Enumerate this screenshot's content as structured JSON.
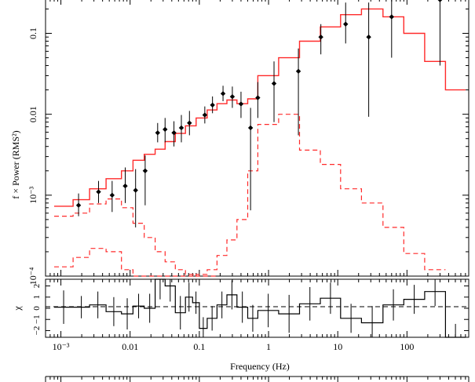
{
  "chart_data": [
    {
      "type": "line",
      "panel": "spectrum",
      "xscale": "log",
      "yscale": "log",
      "ylabel": "f × Power (RMS²)",
      "yticks": [
        {
          "value": 0.001,
          "label": "10⁻³"
        },
        {
          "value": 0.01,
          "label": "0.01"
        },
        {
          "value": 0.1,
          "label": "0.1"
        },
        {
          "value": 0.0001,
          "label": "10⁻⁴"
        }
      ],
      "colors": {
        "data": "#000000",
        "model": "#ff2a2a"
      },
      "data_points": [
        {
          "f": 0.0018,
          "y": 0.00075,
          "ylo": 0.00055,
          "yhi": 0.00105
        },
        {
          "f": 0.0035,
          "y": 0.0011,
          "ylo": 0.0008,
          "yhi": 0.0015
        },
        {
          "f": 0.0055,
          "y": 0.001,
          "ylo": 0.00062,
          "yhi": 0.0015
        },
        {
          "f": 0.0085,
          "y": 0.0013,
          "ylo": 0.0008,
          "yhi": 0.0022
        },
        {
          "f": 0.012,
          "y": 0.00115,
          "ylo": 0.0004,
          "yhi": 0.0021
        },
        {
          "f": 0.0165,
          "y": 0.002,
          "ylo": 0.00075,
          "yhi": 0.0031
        },
        {
          "f": 0.025,
          "y": 0.0059,
          "ylo": 0.0045,
          "yhi": 0.0078
        },
        {
          "f": 0.032,
          "y": 0.0065,
          "ylo": 0.0045,
          "yhi": 0.009
        },
        {
          "f": 0.043,
          "y": 0.0059,
          "ylo": 0.004,
          "yhi": 0.0082
        },
        {
          "f": 0.055,
          "y": 0.0068,
          "ylo": 0.0045,
          "yhi": 0.0098
        },
        {
          "f": 0.072,
          "y": 0.0078,
          "ylo": 0.0055,
          "yhi": 0.011
        },
        {
          "f": 0.12,
          "y": 0.0098,
          "ylo": 0.0077,
          "yhi": 0.0125
        },
        {
          "f": 0.155,
          "y": 0.013,
          "ylo": 0.0103,
          "yhi": 0.0166
        },
        {
          "f": 0.22,
          "y": 0.018,
          "ylo": 0.0145,
          "yhi": 0.0225
        },
        {
          "f": 0.3,
          "y": 0.0165,
          "ylo": 0.012,
          "yhi": 0.022
        },
        {
          "f": 0.4,
          "y": 0.0134,
          "ylo": 0.009,
          "yhi": 0.019
        },
        {
          "f": 0.55,
          "y": 0.0068,
          "ylo": 0.00065,
          "yhi": 0.012
        },
        {
          "f": 0.7,
          "y": 0.016,
          "ylo": 0.009,
          "yhi": 0.025
        },
        {
          "f": 1.2,
          "y": 0.024,
          "ylo": 0.008,
          "yhi": 0.045
        },
        {
          "f": 2.7,
          "y": 0.034,
          "ylo": 0.0055,
          "yhi": 0.065
        },
        {
          "f": 5.7,
          "y": 0.09,
          "ylo": 0.055,
          "yhi": 0.13
        },
        {
          "f": 13.0,
          "y": 0.13,
          "ylo": 0.075,
          "yhi": 0.24
        },
        {
          "f": 28.0,
          "y": 0.09,
          "ylo": 0.0093,
          "yhi": 0.24
        },
        {
          "f": 60.0,
          "y": 0.16,
          "ylo": 0.05,
          "yhi": 0.26
        },
        {
          "f": 300.0,
          "y": 0.26,
          "ylo": 0.04,
          "yhi": 0.26
        }
      ],
      "model_total": {
        "edges": [
          0.0008,
          0.0015,
          0.0026,
          0.0045,
          0.0075,
          0.011,
          0.016,
          0.023,
          0.032,
          0.045,
          0.063,
          0.09,
          0.13,
          0.18,
          0.25,
          0.35,
          0.5,
          0.7,
          1.4,
          2.8,
          5.6,
          11,
          22,
          45,
          90,
          180,
          360,
          700
        ],
        "values": [
          0.00073,
          0.00088,
          0.0012,
          0.0016,
          0.002,
          0.0027,
          0.0032,
          0.0037,
          0.0046,
          0.0058,
          0.0072,
          0.009,
          0.0113,
          0.0135,
          0.015,
          0.0135,
          0.0155,
          0.03,
          0.05,
          0.08,
          0.12,
          0.17,
          0.2,
          0.16,
          0.1,
          0.045,
          0.02
        ]
      },
      "model_component_low": {
        "edges": [
          0.0008,
          0.0015,
          0.0026,
          0.0045,
          0.0075,
          0.011,
          0.016,
          0.023,
          0.032,
          0.045,
          0.063,
          0.09,
          0.13,
          0.18
        ],
        "values": [
          0.00055,
          0.0006,
          0.00078,
          0.0009,
          0.0007,
          0.00045,
          0.0003,
          0.0002,
          0.00015,
          0.00012,
          0.000105,
          9.5e-05,
          9e-05
        ]
      },
      "model_component_high": {
        "edges": [
          0.0008,
          0.0015,
          0.0026,
          0.0045,
          0.0075,
          0.011,
          0.016,
          0.023,
          0.032,
          0.045,
          0.063,
          0.09,
          0.13,
          0.18,
          0.25,
          0.35,
          0.5,
          0.7,
          1.4,
          2.8,
          5.6,
          11,
          22,
          45,
          90,
          180,
          360
        ],
        "values": [
          0.00013,
          0.00017,
          0.00022,
          0.0002,
          0.00012,
          0.0001,
          9e-05,
          9e-05,
          9e-05,
          9e-05,
          9.5e-05,
          0.000105,
          0.00012,
          0.00018,
          0.00028,
          0.0005,
          0.002,
          0.0075,
          0.01,
          0.0036,
          0.0024,
          0.0012,
          0.0008,
          0.0004,
          0.00019,
          0.00012
        ]
      }
    },
    {
      "type": "line",
      "panel": "residuals",
      "xscale": "log",
      "ylabel": "χ",
      "yticks": [
        {
          "value": -2,
          "label": "−2"
        },
        {
          "value": -1,
          "label": "−1"
        },
        {
          "value": 0,
          "label": "0"
        },
        {
          "value": 1,
          "label": "1"
        },
        {
          "value": 2,
          "label": "2"
        }
      ],
      "ylim": [
        -2.6,
        2.6
      ],
      "xticks": [
        {
          "value": 0.001,
          "label": "10⁻³"
        },
        {
          "value": 0.01,
          "label": "0.01"
        },
        {
          "value": 0.1,
          "label": "0.1"
        },
        {
          "value": 1,
          "label": "1"
        },
        {
          "value": 10,
          "label": "10"
        },
        {
          "value": 100,
          "label": "100"
        }
      ],
      "xlabel": "Frequency (Hz)",
      "zero_line": "dashed",
      "edges": [
        0.0008,
        0.0015,
        0.0026,
        0.0045,
        0.0075,
        0.011,
        0.016,
        0.023,
        0.032,
        0.045,
        0.063,
        0.08,
        0.1,
        0.13,
        0.18,
        0.25,
        0.35,
        0.5,
        0.7,
        1.4,
        2.8,
        5.6,
        11,
        22,
        45,
        90,
        180,
        360,
        700
      ],
      "values": [
        0.1,
        0.1,
        0.3,
        -0.3,
        -0.5,
        0.2,
        0.0,
        2.6,
        2.0,
        -0.4,
        1.0,
        0.5,
        -1.8,
        -0.9,
        0.3,
        1.2,
        0.1,
        -0.9,
        -0.2,
        -0.5,
        0.4,
        0.9,
        -0.9,
        -1.3,
        0.3,
        0.8,
        1.5,
        -2.6
      ],
      "errors": [
        1.5,
        1.0,
        1.2,
        1.3,
        1.4,
        1.1,
        1.3,
        1.8,
        1.4,
        1.5,
        1.3,
        1.0,
        1.0,
        1.1,
        1.2,
        1.3,
        1.4,
        1.2,
        1.5,
        1.7,
        1.5,
        1.4,
        1.3,
        1.5,
        1.4,
        1.3,
        1.3,
        1.2
      ]
    }
  ],
  "bottom_stub_note": ""
}
